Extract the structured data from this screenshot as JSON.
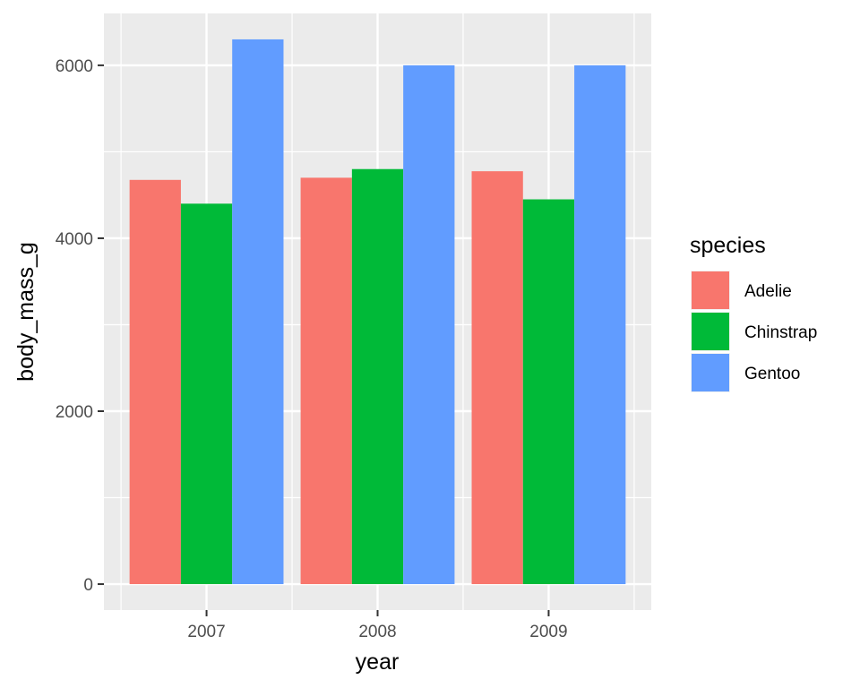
{
  "chart_data": {
    "type": "bar",
    "categories": [
      "2007",
      "2008",
      "2009"
    ],
    "xlabel": "year",
    "ylabel": "body_mass_g",
    "ylim": [
      -300,
      6600
    ],
    "yticks": [
      0,
      2000,
      4000,
      6000
    ],
    "grid": true,
    "legend": {
      "title": "species",
      "position": "right"
    },
    "series": [
      {
        "name": "Adelie",
        "color": "#F8766D",
        "values": [
          4675,
          4700,
          4775
        ]
      },
      {
        "name": "Chinstrap",
        "color": "#00BA38",
        "values": [
          4400,
          4800,
          4450
        ]
      },
      {
        "name": "Gentoo",
        "color": "#619CFF",
        "values": [
          6300,
          6000,
          6000
        ]
      }
    ]
  }
}
